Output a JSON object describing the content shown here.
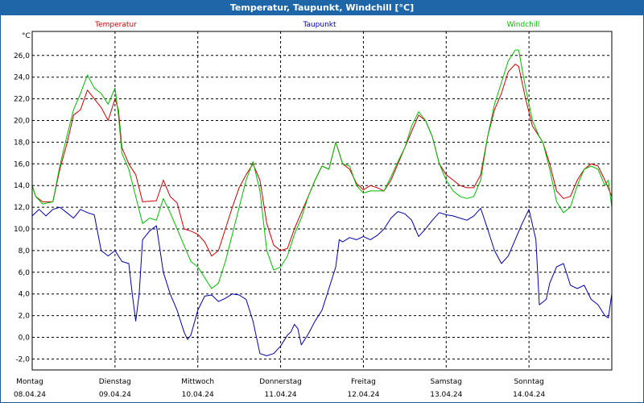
{
  "window": {
    "title": "Temperatur, Taupunkt, Windchill [°C]"
  },
  "colors": {
    "temperature": "#cc0000",
    "dewpoint": "#0000aa",
    "windchill": "#00bb00",
    "titlebar": "#1f66a8",
    "grid": "#000000"
  },
  "chart_data": {
    "type": "line",
    "unit_label": "°C",
    "ylim": [
      -3,
      30
    ],
    "yticks": [
      26,
      24,
      22,
      20,
      18,
      16,
      14,
      12,
      10,
      8,
      6,
      4,
      2,
      0,
      -2
    ],
    "ytick_labels": [
      "26,0",
      "24,0",
      "22,0",
      "20,0",
      "18,0",
      "16,0",
      "14,0",
      "12,0",
      "10,0",
      "8,0",
      "6,0",
      "4,0",
      "2,0",
      "0,0",
      "-2,0"
    ],
    "x_days": [
      {
        "weekday": "Montag",
        "date": "08.04.24"
      },
      {
        "weekday": "Dienstag",
        "date": "09.04.24"
      },
      {
        "weekday": "Mittwoch",
        "date": "10.04.24"
      },
      {
        "weekday": "Donnerstag",
        "date": "11.04.24"
      },
      {
        "weekday": "Freitag",
        "date": "12.04.24"
      },
      {
        "weekday": "Samstag",
        "date": "13.04.24"
      },
      {
        "weekday": "Sonntag",
        "date": "14.04.24"
      }
    ],
    "xlim": [
      0,
      168
    ],
    "grid": true,
    "legend": "top",
    "series": [
      {
        "name": "Temperatur",
        "key": "temperature",
        "points": [
          [
            0,
            14.0
          ],
          [
            1,
            13.0
          ],
          [
            3,
            12.5
          ],
          [
            6,
            12.5
          ],
          [
            8,
            15.5
          ],
          [
            10,
            17.8
          ],
          [
            12,
            20.5
          ],
          [
            14,
            21.0
          ],
          [
            16,
            22.8
          ],
          [
            18,
            22.0
          ],
          [
            20,
            21.2
          ],
          [
            22,
            20.0
          ],
          [
            24,
            22.0
          ],
          [
            25,
            21.0
          ],
          [
            26,
            17.5
          ],
          [
            28,
            16.0
          ],
          [
            30,
            15.0
          ],
          [
            32,
            12.5
          ],
          [
            36,
            12.6
          ],
          [
            38,
            14.5
          ],
          [
            40,
            13.0
          ],
          [
            42,
            12.4
          ],
          [
            44,
            10.0
          ],
          [
            46,
            9.8
          ],
          [
            48,
            9.5
          ],
          [
            50,
            8.8
          ],
          [
            52,
            7.5
          ],
          [
            54,
            8.0
          ],
          [
            56,
            10.0
          ],
          [
            58,
            12.0
          ],
          [
            60,
            13.8
          ],
          [
            62,
            15.0
          ],
          [
            64,
            16.0
          ],
          [
            66,
            14.5
          ],
          [
            68,
            10.5
          ],
          [
            70,
            8.5
          ],
          [
            72,
            8.0
          ],
          [
            74,
            8.2
          ],
          [
            76,
            10.0
          ],
          [
            78,
            11.5
          ],
          [
            80,
            13.0
          ],
          [
            82,
            14.5
          ],
          [
            84,
            15.8
          ],
          [
            86,
            15.5
          ],
          [
            88,
            18.0
          ],
          [
            90,
            16.0
          ],
          [
            92,
            15.5
          ],
          [
            94,
            14.2
          ],
          [
            96,
            13.6
          ],
          [
            98,
            14.0
          ],
          [
            100,
            13.8
          ],
          [
            102,
            13.5
          ],
          [
            104,
            14.5
          ],
          [
            106,
            16.0
          ],
          [
            108,
            17.5
          ],
          [
            110,
            19.0
          ],
          [
            112,
            20.5
          ],
          [
            114,
            20.0
          ],
          [
            116,
            18.5
          ],
          [
            118,
            16.0
          ],
          [
            120,
            15.0
          ],
          [
            122,
            14.5
          ],
          [
            124,
            14.0
          ],
          [
            126,
            13.8
          ],
          [
            128,
            13.8
          ],
          [
            130,
            15.0
          ],
          [
            132,
            18.5
          ],
          [
            134,
            21.0
          ],
          [
            136,
            22.5
          ],
          [
            138,
            24.5
          ],
          [
            140,
            25.2
          ],
          [
            141,
            25.0
          ],
          [
            143,
            22.0
          ],
          [
            145,
            19.5
          ],
          [
            147,
            18.5
          ],
          [
            148,
            18.0
          ],
          [
            150,
            16.0
          ],
          [
            152,
            13.5
          ],
          [
            154,
            12.8
          ],
          [
            156,
            13.0
          ],
          [
            158,
            14.5
          ],
          [
            160,
            15.5
          ],
          [
            162,
            16.0
          ],
          [
            164,
            15.8
          ],
          [
            166,
            14.5
          ],
          [
            168,
            13.0
          ]
        ]
      },
      {
        "name": "Taupunkt",
        "key": "dewpoint",
        "points": [
          [
            0,
            11.2
          ],
          [
            2,
            11.8
          ],
          [
            4,
            11.2
          ],
          [
            6,
            11.8
          ],
          [
            8,
            12.0
          ],
          [
            10,
            11.5
          ],
          [
            12,
            11.0
          ],
          [
            14,
            11.8
          ],
          [
            16,
            11.5
          ],
          [
            18,
            11.3
          ],
          [
            20,
            8.0
          ],
          [
            22,
            7.5
          ],
          [
            24,
            8.0
          ],
          [
            26,
            7.0
          ],
          [
            28,
            6.8
          ],
          [
            29,
            4.0
          ],
          [
            30,
            1.5
          ],
          [
            31,
            4.0
          ],
          [
            32,
            9.0
          ],
          [
            34,
            9.8
          ],
          [
            36,
            10.3
          ],
          [
            38,
            6.0
          ],
          [
            40,
            4.0
          ],
          [
            42,
            2.5
          ],
          [
            44,
            0.5
          ],
          [
            45,
            -0.2
          ],
          [
            46,
            0.2
          ],
          [
            48,
            2.5
          ],
          [
            50,
            3.8
          ],
          [
            52,
            3.9
          ],
          [
            54,
            3.3
          ],
          [
            56,
            3.6
          ],
          [
            58,
            4.0
          ],
          [
            60,
            3.9
          ],
          [
            62,
            3.5
          ],
          [
            64,
            1.5
          ],
          [
            66,
            -1.5
          ],
          [
            68,
            -1.7
          ],
          [
            70,
            -1.5
          ],
          [
            72,
            -0.8
          ],
          [
            74,
            0.2
          ],
          [
            75,
            0.5
          ],
          [
            76,
            1.2
          ],
          [
            77,
            0.8
          ],
          [
            78,
            -0.7
          ],
          [
            80,
            0.3
          ],
          [
            82,
            1.5
          ],
          [
            84,
            2.5
          ],
          [
            86,
            4.5
          ],
          [
            88,
            6.5
          ],
          [
            89,
            9.0
          ],
          [
            90,
            8.8
          ],
          [
            92,
            9.2
          ],
          [
            94,
            9.0
          ],
          [
            96,
            9.3
          ],
          [
            98,
            9.0
          ],
          [
            100,
            9.4
          ],
          [
            102,
            10.0
          ],
          [
            104,
            11.0
          ],
          [
            106,
            11.6
          ],
          [
            108,
            11.4
          ],
          [
            110,
            10.8
          ],
          [
            112,
            9.3
          ],
          [
            114,
            10.0
          ],
          [
            116,
            10.8
          ],
          [
            118,
            11.5
          ],
          [
            120,
            11.3
          ],
          [
            122,
            11.2
          ],
          [
            124,
            11.0
          ],
          [
            126,
            10.8
          ],
          [
            128,
            11.2
          ],
          [
            130,
            11.9
          ],
          [
            132,
            10.0
          ],
          [
            134,
            8.0
          ],
          [
            136,
            6.8
          ],
          [
            138,
            7.5
          ],
          [
            140,
            9.0
          ],
          [
            142,
            10.5
          ],
          [
            144,
            11.8
          ],
          [
            146,
            9.0
          ],
          [
            147,
            3.0
          ],
          [
            149,
            3.5
          ],
          [
            150,
            5.0
          ],
          [
            152,
            6.5
          ],
          [
            154,
            6.8
          ],
          [
            156,
            4.8
          ],
          [
            158,
            4.5
          ],
          [
            160,
            4.8
          ],
          [
            162,
            3.5
          ],
          [
            164,
            3.0
          ],
          [
            166,
            2.0
          ],
          [
            167,
            1.8
          ],
          [
            168,
            4.0
          ]
        ]
      },
      {
        "name": "Windchill",
        "key": "windchill",
        "points": [
          [
            0,
            14.0
          ],
          [
            1,
            13.0
          ],
          [
            3,
            12.3
          ],
          [
            6,
            12.5
          ],
          [
            8,
            15.8
          ],
          [
            10,
            18.5
          ],
          [
            12,
            21.0
          ],
          [
            14,
            22.5
          ],
          [
            16,
            24.2
          ],
          [
            18,
            23.0
          ],
          [
            20,
            22.5
          ],
          [
            22,
            21.5
          ],
          [
            24,
            23.0
          ],
          [
            25,
            20.5
          ],
          [
            26,
            17.0
          ],
          [
            28,
            15.5
          ],
          [
            30,
            13.0
          ],
          [
            32,
            10.5
          ],
          [
            34,
            11.0
          ],
          [
            36,
            10.8
          ],
          [
            38,
            12.8
          ],
          [
            40,
            11.5
          ],
          [
            42,
            10.0
          ],
          [
            44,
            8.5
          ],
          [
            46,
            7.0
          ],
          [
            48,
            6.5
          ],
          [
            50,
            5.5
          ],
          [
            52,
            4.5
          ],
          [
            54,
            5.0
          ],
          [
            56,
            7.0
          ],
          [
            58,
            9.5
          ],
          [
            60,
            12.0
          ],
          [
            62,
            14.5
          ],
          [
            64,
            16.2
          ],
          [
            66,
            13.5
          ],
          [
            68,
            8.0
          ],
          [
            70,
            6.2
          ],
          [
            72,
            6.5
          ],
          [
            74,
            7.5
          ],
          [
            76,
            9.5
          ],
          [
            78,
            11.0
          ],
          [
            80,
            13.0
          ],
          [
            82,
            14.5
          ],
          [
            84,
            15.8
          ],
          [
            86,
            15.5
          ],
          [
            88,
            18.0
          ],
          [
            90,
            16.0
          ],
          [
            92,
            15.8
          ],
          [
            94,
            14.0
          ],
          [
            96,
            13.3
          ],
          [
            98,
            13.5
          ],
          [
            100,
            13.5
          ],
          [
            102,
            13.5
          ],
          [
            104,
            14.8
          ],
          [
            106,
            16.2
          ],
          [
            108,
            17.5
          ],
          [
            110,
            19.5
          ],
          [
            112,
            20.8
          ],
          [
            114,
            20.0
          ],
          [
            116,
            18.5
          ],
          [
            118,
            16.0
          ],
          [
            120,
            14.5
          ],
          [
            122,
            13.5
          ],
          [
            124,
            13.0
          ],
          [
            126,
            12.8
          ],
          [
            128,
            13.0
          ],
          [
            130,
            14.5
          ],
          [
            132,
            18.5
          ],
          [
            134,
            21.5
          ],
          [
            136,
            23.5
          ],
          [
            138,
            25.5
          ],
          [
            140,
            26.5
          ],
          [
            141,
            26.5
          ],
          [
            143,
            23.0
          ],
          [
            145,
            20.0
          ],
          [
            147,
            18.5
          ],
          [
            148,
            18.0
          ],
          [
            150,
            15.5
          ],
          [
            152,
            12.5
          ],
          [
            154,
            11.5
          ],
          [
            156,
            12.0
          ],
          [
            158,
            14.0
          ],
          [
            160,
            15.5
          ],
          [
            162,
            15.8
          ],
          [
            164,
            15.5
          ],
          [
            166,
            14.0
          ],
          [
            167,
            14.5
          ],
          [
            168,
            12.0
          ]
        ]
      }
    ]
  }
}
